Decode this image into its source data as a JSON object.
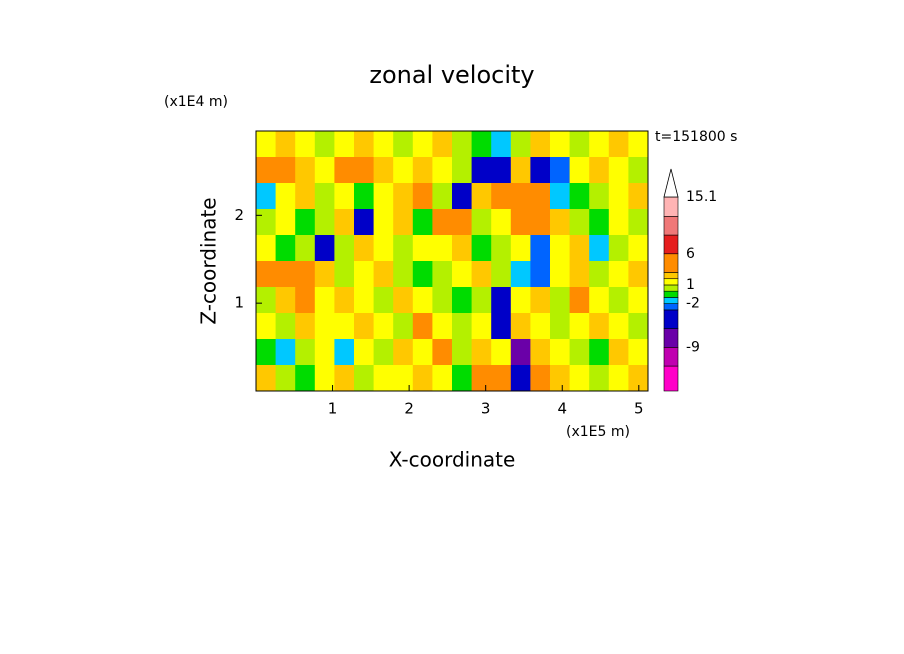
{
  "chart_data": {
    "type": "contour",
    "title": "zonal velocity",
    "y_unit": "(x1E4 m)",
    "x_unit": "(x1E5 m)",
    "time_label": "t=151800 s",
    "xlabel": "X-coordinate",
    "ylabel": "Z-coordinate",
    "xlim": [
      0,
      5.12
    ],
    "ylim": [
      0,
      2.96
    ],
    "xticks": [
      1,
      2,
      3,
      4,
      5
    ],
    "yticks": [
      1,
      2
    ],
    "levels": [
      -16,
      -12,
      -9,
      -6,
      -3,
      -2,
      -1,
      0,
      1,
      2,
      3,
      6,
      9,
      12,
      15.1
    ],
    "colors": [
      "#ff00c8",
      "#c000b0",
      "#6a00a8",
      "#0000c8",
      "#0064ff",
      "#00c8ff",
      "#00dc00",
      "#b4f000",
      "#ffff00",
      "#ffc800",
      "#ff8c00",
      "#e61e1e",
      "#f07878",
      "#ffb4b4"
    ],
    "over_color": "#ffffff",
    "cbar_ticks": [
      15.1,
      6,
      1,
      -2,
      -9
    ],
    "z": [
      [
        1,
        2,
        1,
        0,
        1,
        2,
        1,
        0,
        1,
        2,
        0,
        -1,
        -2,
        0,
        2,
        1,
        0,
        1,
        2,
        1
      ],
      [
        4,
        4,
        2,
        1,
        4,
        3,
        2,
        1,
        2,
        1,
        0,
        -5,
        -4,
        2,
        -6,
        -3,
        1,
        2,
        1,
        0
      ],
      [
        -2,
        1,
        2,
        0,
        1,
        -1,
        1,
        2,
        3,
        0,
        -4,
        2,
        4,
        5,
        3,
        -2,
        -1,
        0,
        1,
        2
      ],
      [
        0,
        1,
        -1,
        0,
        2,
        -4,
        1,
        2,
        -1,
        4,
        3,
        0,
        1,
        4,
        3,
        2,
        0,
        -1,
        1,
        0
      ],
      [
        1,
        -1,
        0,
        -6,
        0,
        2,
        1,
        0,
        1,
        1,
        2,
        -1,
        0,
        1,
        -3,
        1,
        2,
        -2,
        0,
        1
      ],
      [
        4,
        3,
        5,
        2,
        0,
        1,
        2,
        0,
        -1,
        0,
        1,
        2,
        0,
        -2,
        -3,
        1,
        2,
        0,
        1,
        2
      ],
      [
        0,
        2,
        3,
        1,
        2,
        1,
        0,
        2,
        1,
        0,
        -1,
        0,
        -6,
        1,
        2,
        0,
        3,
        1,
        0,
        1
      ],
      [
        1,
        0,
        2,
        1,
        1,
        2,
        1,
        0,
        3,
        1,
        0,
        1,
        -6,
        2,
        1,
        0,
        1,
        2,
        1,
        0
      ],
      [
        -1,
        -2,
        0,
        1,
        -2,
        1,
        0,
        2,
        1,
        3,
        0,
        2,
        1,
        -7,
        2,
        1,
        0,
        -1,
        2,
        1
      ],
      [
        2,
        0,
        -1,
        1,
        2,
        0,
        1,
        1,
        2,
        1,
        -1,
        3,
        4,
        -6,
        4,
        2,
        1,
        0,
        1,
        2
      ]
    ]
  }
}
